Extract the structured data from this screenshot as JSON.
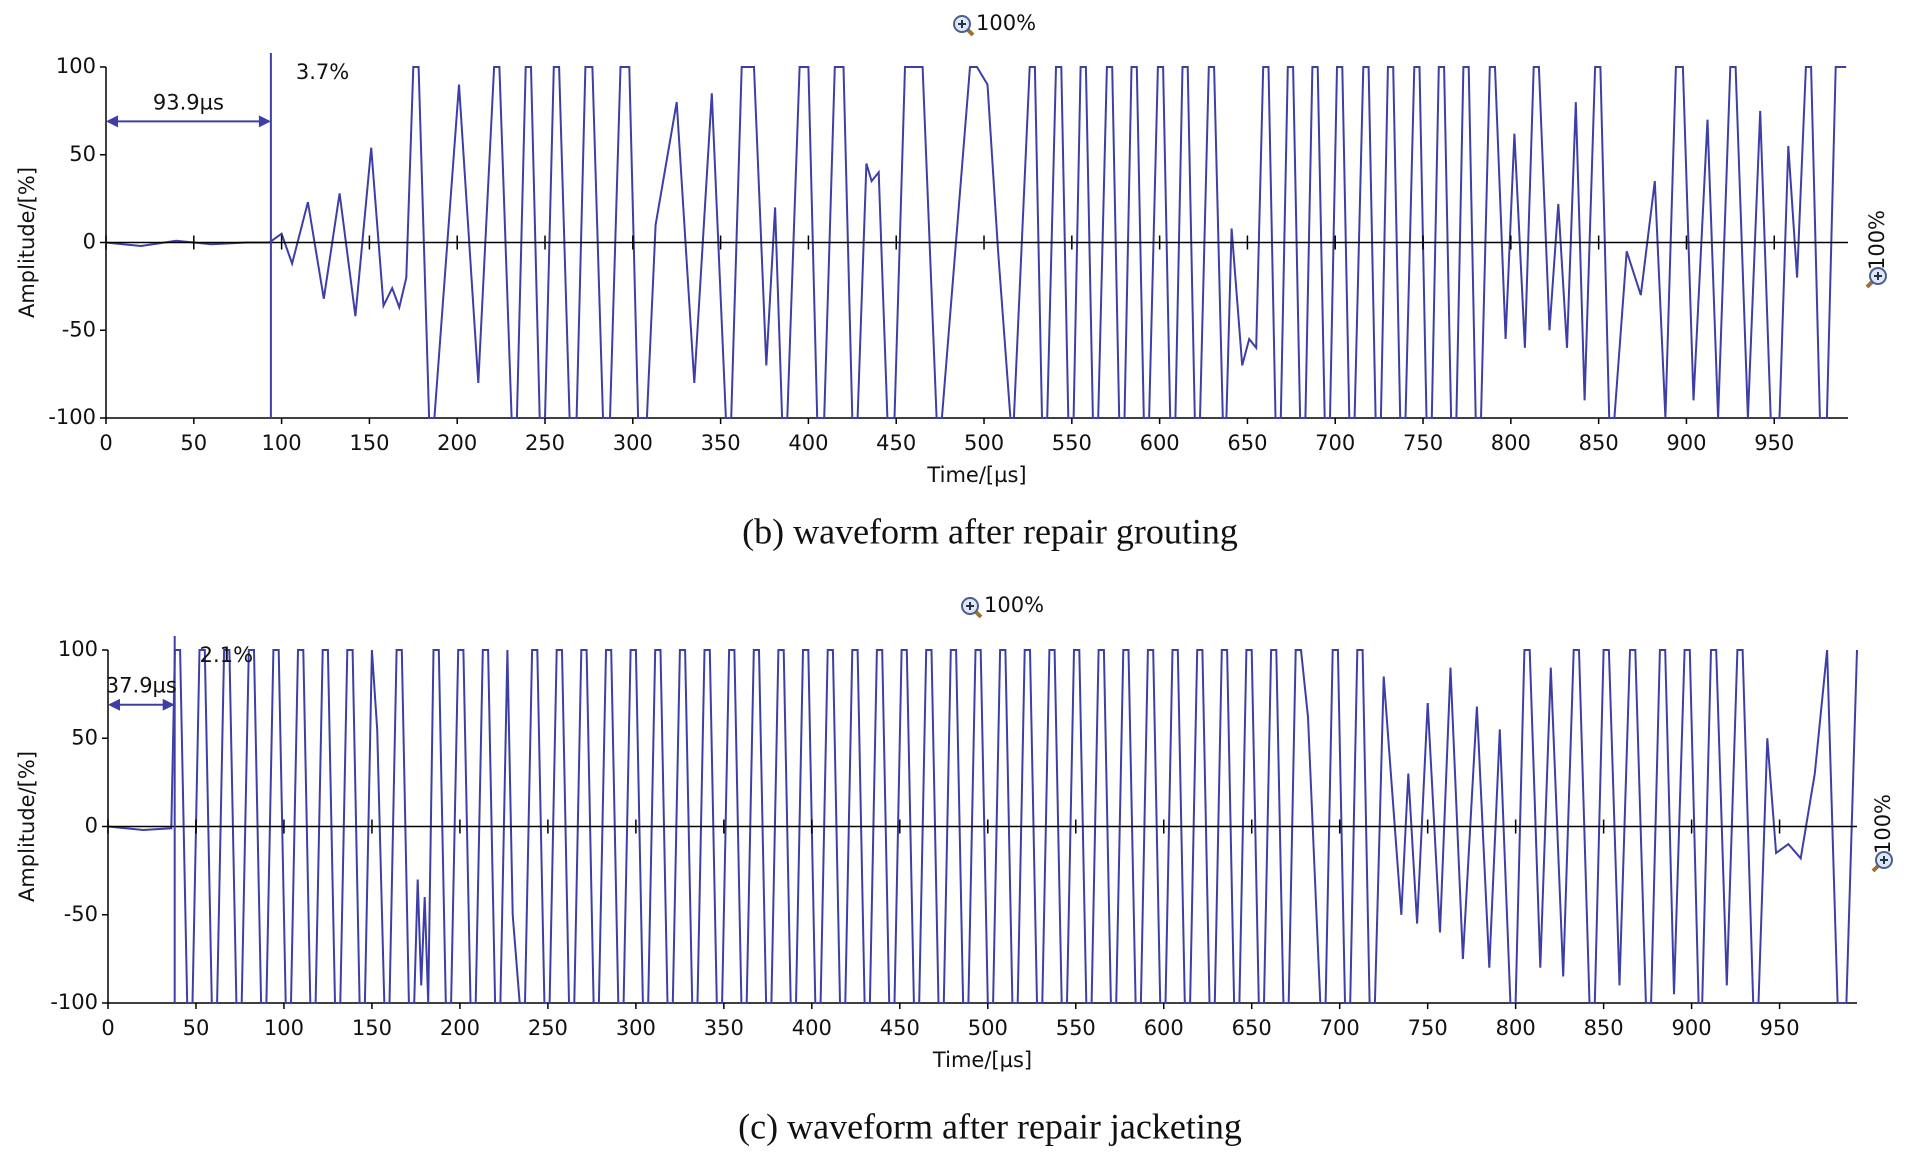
{
  "chart_data": [
    {
      "type": "line",
      "caption": "(b) waveform after repair grouting",
      "xlabel": "Time/[µs]",
      "ylabel": "Amplitude/[%]",
      "zoom_top": "100%",
      "zoom_right": "100%",
      "cursor": {
        "value": 93.9,
        "label": "93.9µs"
      },
      "cursor_note": "3.7%",
      "color": "#3d3fa6",
      "xlim": [
        0,
        992
      ],
      "ylim": [
        -100,
        100
      ],
      "xticks": [
        0,
        50,
        100,
        150,
        200,
        250,
        300,
        350,
        400,
        450,
        500,
        550,
        600,
        650,
        700,
        750,
        800,
        850,
        900,
        950
      ],
      "yticks": [
        -100,
        -50,
        0,
        50,
        100
      ],
      "x": [
        0,
        20,
        40,
        60,
        80,
        93,
        100,
        106,
        115,
        124,
        133,
        142,
        151,
        158,
        163,
        167,
        171,
        175,
        178,
        184,
        187,
        201,
        212,
        221,
        224,
        231,
        234,
        239,
        242,
        247,
        250,
        255,
        258,
        264,
        268,
        273,
        277,
        283,
        287,
        293,
        298,
        303,
        308,
        313,
        325,
        335,
        345,
        353,
        356,
        362,
        369,
        376,
        381,
        385,
        388,
        395,
        400,
        405,
        409,
        415,
        420,
        425,
        428,
        433,
        436,
        440,
        445,
        449,
        455,
        465,
        473,
        476,
        492,
        496,
        502,
        508,
        515,
        517,
        526,
        529,
        533,
        536,
        541,
        544,
        548,
        551,
        555,
        558,
        562,
        565,
        570,
        573,
        577,
        580,
        584,
        587,
        591,
        594,
        599,
        602,
        606,
        609,
        613,
        616,
        620,
        623,
        628,
        631,
        636,
        638,
        641,
        647,
        651,
        655,
        659,
        662,
        666,
        669,
        673,
        676,
        680,
        683,
        687,
        690,
        694,
        697,
        701,
        704,
        708,
        711,
        716,
        719,
        723,
        726,
        730,
        733,
        737,
        740,
        745,
        748,
        752,
        755,
        759,
        762,
        766,
        769,
        773,
        776,
        780,
        783,
        788,
        791,
        797,
        802,
        808,
        813,
        816,
        822,
        827,
        832,
        837,
        842,
        848,
        851,
        856,
        859,
        866,
        874,
        882,
        888,
        894,
        898,
        904,
        912,
        918,
        925,
        928,
        935,
        942,
        948,
        953,
        958,
        963,
        968,
        971,
        976,
        980,
        985,
        991
      ],
      "values": [
        0,
        -2,
        1,
        -1,
        0,
        0,
        5,
        -12,
        23,
        -32,
        28,
        -42,
        54,
        -36,
        -26,
        -37,
        -20,
        100,
        100,
        -100,
        -100,
        90,
        -80,
        100,
        100,
        -100,
        -100,
        100,
        100,
        -100,
        -100,
        100,
        100,
        -100,
        -100,
        100,
        100,
        -100,
        -100,
        100,
        100,
        -100,
        -100,
        10,
        80,
        -80,
        85,
        -100,
        -100,
        100,
        100,
        -70,
        20,
        -100,
        -100,
        100,
        100,
        -100,
        -100,
        100,
        100,
        -100,
        -100,
        45,
        35,
        40,
        -100,
        -100,
        100,
        100,
        -100,
        -100,
        100,
        100,
        90,
        -5,
        -100,
        -100,
        100,
        100,
        -100,
        -100,
        100,
        100,
        -100,
        -100,
        100,
        100,
        -100,
        -100,
        100,
        100,
        -100,
        -100,
        100,
        100,
        -100,
        -100,
        100,
        100,
        -100,
        -100,
        100,
        100,
        -100,
        -100,
        100,
        100,
        -100,
        -100,
        8,
        -70,
        -55,
        -60,
        100,
        100,
        -100,
        -100,
        100,
        100,
        -100,
        -100,
        100,
        100,
        -100,
        -100,
        100,
        100,
        -100,
        -100,
        100,
        100,
        -100,
        -100,
        100,
        100,
        -100,
        -100,
        100,
        100,
        -100,
        -100,
        100,
        100,
        -100,
        -100,
        100,
        100,
        -100,
        -100,
        100,
        100,
        -55,
        62,
        -60,
        100,
        100,
        -50,
        22,
        -60,
        80,
        -90,
        100,
        100,
        -100,
        -100,
        -5,
        -30,
        35,
        -100,
        100,
        100,
        -90,
        70,
        -100,
        100,
        100,
        -100,
        75,
        -100,
        -100,
        55,
        -20,
        100,
        100,
        -100,
        -100,
        100,
        100
      ]
    },
    {
      "type": "line",
      "caption": "(c) waveform after repair jacketing",
      "xlabel": "Time/[µs]",
      "ylabel": "Amplitude/[%]",
      "zoom_top": "100%",
      "zoom_right": "100%",
      "cursor": {
        "value": 37.9,
        "label": "37.9µs"
      },
      "cursor_note": "2.1%",
      "color": "#3d3fa6",
      "xlim": [
        0,
        994
      ],
      "ylim": [
        -100,
        100
      ],
      "xticks": [
        0,
        50,
        100,
        150,
        200,
        250,
        300,
        350,
        400,
        450,
        500,
        550,
        600,
        650,
        700,
        750,
        800,
        850,
        900,
        950
      ],
      "yticks": [
        -100,
        -50,
        0,
        50,
        100
      ],
      "x": [
        0,
        20,
        36,
        38,
        41,
        45,
        48,
        52,
        55,
        59,
        62,
        66,
        69,
        73,
        76,
        80,
        83,
        87,
        90,
        94,
        97,
        101,
        104,
        108,
        111,
        115,
        118,
        122,
        125,
        129,
        132,
        136,
        139,
        143,
        146,
        150,
        153,
        157,
        160,
        164,
        167,
        171,
        174,
        176,
        178,
        180,
        182,
        185,
        188,
        192,
        195,
        199,
        202,
        206,
        209,
        213,
        216,
        220,
        223,
        227,
        230,
        234,
        237,
        241,
        244,
        248,
        251,
        255,
        258,
        262,
        265,
        269,
        272,
        276,
        279,
        283,
        286,
        290,
        293,
        297,
        300,
        304,
        307,
        311,
        314,
        318,
        321,
        325,
        328,
        332,
        335,
        339,
        342,
        346,
        349,
        353,
        356,
        360,
        363,
        367,
        370,
        374,
        377,
        381,
        384,
        388,
        391,
        395,
        398,
        402,
        405,
        409,
        412,
        416,
        419,
        423,
        426,
        430,
        433,
        437,
        440,
        444,
        447,
        451,
        454,
        458,
        461,
        465,
        468,
        472,
        475,
        479,
        482,
        486,
        489,
        493,
        496,
        500,
        503,
        507,
        510,
        514,
        517,
        521,
        524,
        528,
        531,
        535,
        538,
        542,
        545,
        549,
        552,
        556,
        559,
        563,
        566,
        570,
        573,
        577,
        580,
        584,
        587,
        591,
        594,
        598,
        601,
        605,
        608,
        612,
        615,
        619,
        622,
        626,
        629,
        633,
        636,
        640,
        643,
        647,
        650,
        654,
        657,
        661,
        664,
        668,
        671,
        675,
        678,
        682,
        689,
        692,
        696,
        699,
        703,
        706,
        710,
        713,
        717,
        720,
        725,
        735,
        739,
        744,
        750,
        757,
        763,
        770,
        778,
        785,
        791,
        797,
        800,
        805,
        808,
        814,
        820,
        827,
        833,
        836,
        842,
        845,
        850,
        853,
        859,
        865,
        868,
        874,
        877,
        882,
        885,
        890,
        896,
        899,
        904,
        906,
        911,
        914,
        920,
        926,
        929,
        935,
        938,
        943,
        948,
        955,
        962,
        970,
        977,
        983,
        988,
        994
      ],
      "values": [
        0,
        -2,
        -1,
        100,
        100,
        -100,
        -100,
        100,
        100,
        -100,
        -100,
        100,
        100,
        -100,
        -100,
        100,
        100,
        -100,
        -100,
        100,
        100,
        -100,
        -100,
        100,
        100,
        -100,
        -100,
        100,
        100,
        -100,
        -100,
        100,
        100,
        -100,
        -100,
        100,
        55,
        -100,
        -100,
        100,
        100,
        -100,
        -100,
        -30,
        -90,
        -40,
        -100,
        100,
        100,
        -100,
        -100,
        100,
        100,
        -100,
        -100,
        100,
        100,
        -100,
        -100,
        100,
        -50,
        -100,
        -100,
        100,
        100,
        -100,
        -100,
        100,
        100,
        -100,
        -100,
        100,
        100,
        -100,
        -100,
        100,
        100,
        -100,
        -100,
        100,
        100,
        -100,
        -100,
        100,
        100,
        -100,
        -100,
        100,
        100,
        -100,
        -100,
        100,
        100,
        -100,
        -100,
        100,
        100,
        -100,
        -100,
        100,
        100,
        -100,
        -100,
        100,
        100,
        -100,
        -100,
        100,
        100,
        -100,
        -100,
        100,
        100,
        -100,
        -100,
        100,
        100,
        -100,
        -100,
        100,
        100,
        -100,
        -100,
        100,
        100,
        -100,
        -100,
        100,
        100,
        -100,
        -100,
        100,
        100,
        -100,
        -100,
        100,
        100,
        -100,
        -100,
        100,
        100,
        -100,
        -100,
        100,
        100,
        -100,
        -100,
        100,
        100,
        -100,
        -100,
        100,
        100,
        -100,
        -100,
        100,
        100,
        -100,
        -100,
        100,
        100,
        -100,
        -100,
        100,
        100,
        -100,
        -100,
        100,
        100,
        -100,
        -100,
        100,
        100,
        -100,
        -100,
        100,
        100,
        -100,
        -100,
        100,
        100,
        -100,
        -100,
        100,
        100,
        -100,
        -100,
        100,
        100,
        62,
        -100,
        -100,
        100,
        100,
        -100,
        -100,
        100,
        100,
        -100,
        -100,
        85,
        -50,
        30,
        -55,
        70,
        -60,
        90,
        -75,
        68,
        -80,
        55,
        -100,
        -100,
        100,
        100,
        -80,
        90,
        -85,
        100,
        100,
        -100,
        -100,
        100,
        100,
        -90,
        100,
        100,
        -100,
        -100,
        100,
        100,
        -95,
        100,
        100,
        -100,
        -100,
        100,
        100,
        -90,
        100,
        100,
        -100,
        -100,
        50,
        -15,
        -10,
        -18,
        30,
        100,
        -100,
        -100,
        100
      ]
    }
  ]
}
